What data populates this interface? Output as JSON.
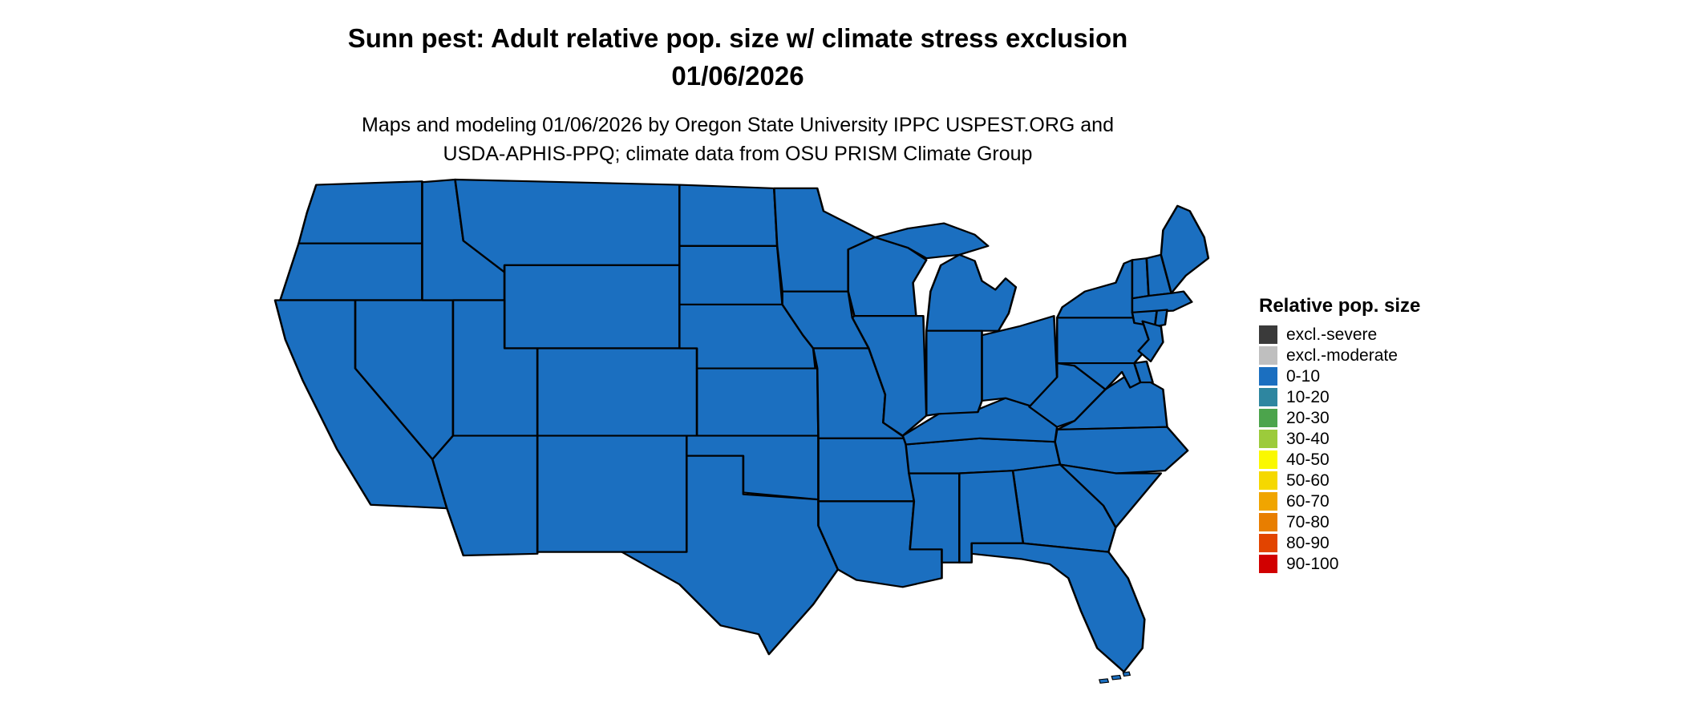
{
  "header": {
    "title_line1": "Sunn pest: Adult relative pop. size w/ climate stress exclusion",
    "title_line2": "01/06/2026",
    "subtitle_line1": "Maps and modeling 01/06/2026 by Oregon State University IPPC USPEST.ORG and",
    "subtitle_line2": "USDA-APHIS-PPQ; climate data from OSU PRISM Climate Group"
  },
  "legend": {
    "title": "Relative pop. size",
    "items": [
      {
        "label": "excl.-severe",
        "color": "#3A3A3A"
      },
      {
        "label": "excl.-moderate",
        "color": "#BFBFBF"
      },
      {
        "label": "0-10",
        "color": "#1B6FC0"
      },
      {
        "label": "10-20",
        "color": "#2E86A0"
      },
      {
        "label": "20-30",
        "color": "#4CA44C"
      },
      {
        "label": "30-40",
        "color": "#9CCB3B"
      },
      {
        "label": "40-50",
        "color": "#FAF800"
      },
      {
        "label": "50-60",
        "color": "#F5D800"
      },
      {
        "label": "60-70",
        "color": "#F0A500"
      },
      {
        "label": "70-80",
        "color": "#E87E00"
      },
      {
        "label": "80-90",
        "color": "#E24400"
      },
      {
        "label": "90-100",
        "color": "#D10000"
      }
    ]
  },
  "map": {
    "type": "choropleth",
    "region": "Contiguous United States",
    "all_states_category": "0-10",
    "border_color": "#000000",
    "state_codes": [
      "WA",
      "OR",
      "CA",
      "NV",
      "ID",
      "MT",
      "WY",
      "UT",
      "CO",
      "AZ",
      "NM",
      "ND",
      "SD",
      "NE",
      "KS",
      "OK",
      "TX",
      "MN",
      "IA",
      "MO",
      "AR",
      "LA",
      "WI",
      "IL",
      "MS",
      "TN",
      "KY",
      "MI",
      "IN",
      "OH",
      "WV",
      "VA",
      "NC",
      "SC",
      "GA",
      "AL",
      "FL",
      "PA",
      "NY",
      "VT",
      "NH",
      "ME",
      "MA",
      "CT",
      "RI",
      "NJ",
      "MD",
      "DE"
    ]
  },
  "chart_data": {
    "type": "choropleth-map",
    "title": "Sunn pest: Adult relative pop. size w/ climate stress exclusion",
    "date": "01/06/2026",
    "legend_title": "Relative pop. size",
    "categories": [
      "excl.-severe",
      "excl.-moderate",
      "0-10",
      "10-20",
      "20-30",
      "30-40",
      "40-50",
      "50-60",
      "60-70",
      "70-80",
      "80-90",
      "90-100"
    ],
    "observation": "All contiguous US states are shown in the 0-10 relative population size class (blue)"
  }
}
